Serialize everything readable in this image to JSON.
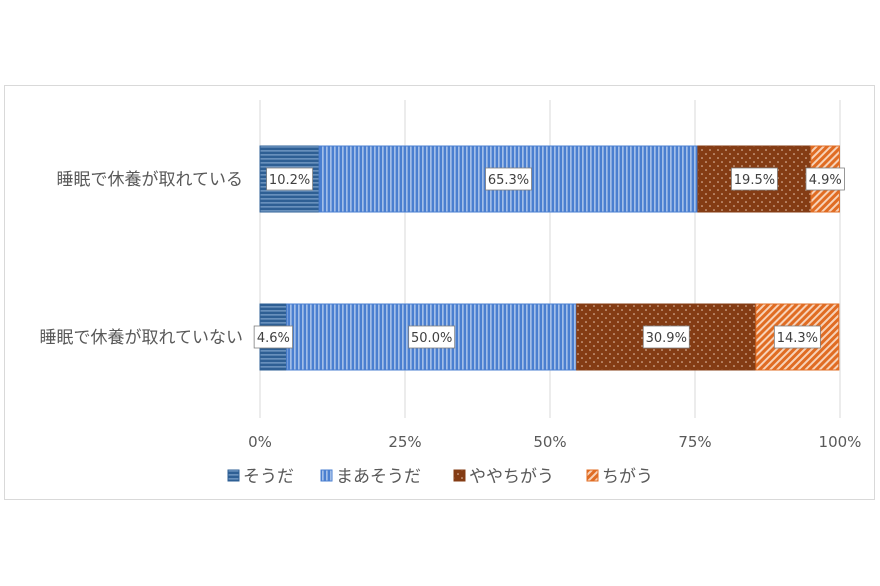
{
  "chart_data": {
    "type": "bar",
    "orientation": "horizontal",
    "stacked": "percent",
    "categories": [
      "睡眠で休養が取れている",
      "睡眠で休養が取れていない"
    ],
    "series": [
      {
        "name": "そうだ",
        "values": [
          10.2,
          4.6
        ],
        "labels": [
          "10.2%",
          "4.6%"
        ],
        "color": "#2e5f94",
        "pattern": "horizontal-lines"
      },
      {
        "name": "まあそうだ",
        "values": [
          65.3,
          50.0
        ],
        "labels": [
          "65.3%",
          "50.0%"
        ],
        "color": "#4a7fd0",
        "pattern": "vertical-lines"
      },
      {
        "name": "ややちがう",
        "values": [
          19.5,
          30.9
        ],
        "labels": [
          "19.5%",
          "30.9%"
        ],
        "color": "#843c14",
        "pattern": "dots"
      },
      {
        "name": "ちがう",
        "values": [
          4.9,
          14.3
        ],
        "labels": [
          "4.9%",
          "14.3%"
        ],
        "color": "#e06c23",
        "pattern": "diagonal-lines"
      }
    ],
    "xlim": [
      0,
      100
    ],
    "xticks": [
      0,
      25,
      50,
      75,
      100
    ],
    "xtick_labels": [
      "0%",
      "25%",
      "50%",
      "75%",
      "100%"
    ],
    "grid": true,
    "legend_position": "bottom"
  }
}
